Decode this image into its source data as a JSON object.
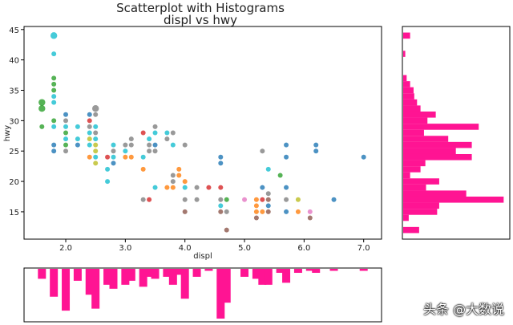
{
  "title_line1": "Scatterplot with Histograms",
  "title_line2": "displ vs hwy",
  "watermark": "头条 @大数说",
  "colors": {
    "hist": "#ff1493",
    "frame": "#000000"
  },
  "chart_data": [
    {
      "type": "scatter",
      "xlabel": "displ",
      "ylabel": "hwy",
      "xlim": [
        1.3,
        7.3
      ],
      "ylim": [
        10.5,
        45.5
      ],
      "xticks": [
        "2.0",
        "3.0",
        "4.0",
        "5.0",
        "6.0",
        "7.0"
      ],
      "yticks": [
        "15",
        "20",
        "25",
        "30",
        "35",
        "40",
        "45"
      ],
      "grid": false,
      "points": [
        {
          "x": 1.8,
          "y": 44,
          "c": "#17becf",
          "n": 2
        },
        {
          "x": 1.8,
          "y": 41,
          "c": "#17becf",
          "n": 1
        },
        {
          "x": 1.8,
          "y": 37,
          "c": "#2ca02c",
          "n": 1
        },
        {
          "x": 1.8,
          "y": 36,
          "c": "#2ca02c",
          "n": 1
        },
        {
          "x": 1.8,
          "y": 35,
          "c": "#2ca02c",
          "n": 1
        },
        {
          "x": 1.8,
          "y": 34,
          "c": "#17becf",
          "n": 1
        },
        {
          "x": 1.8,
          "y": 33,
          "c": "#17becf",
          "n": 1
        },
        {
          "x": 1.6,
          "y": 33,
          "c": "#2ca02c",
          "n": 2
        },
        {
          "x": 1.6,
          "y": 32,
          "c": "#2ca02c",
          "n": 2
        },
        {
          "x": 1.6,
          "y": 29,
          "c": "#2ca02c",
          "n": 1
        },
        {
          "x": 1.8,
          "y": 30,
          "c": "#2ca02c",
          "n": 1
        },
        {
          "x": 1.8,
          "y": 29,
          "c": "#17becf",
          "n": 1
        },
        {
          "x": 1.8,
          "y": 26,
          "c": "#1f77b4",
          "n": 1
        },
        {
          "x": 1.8,
          "y": 25,
          "c": "#1f77b4",
          "n": 1
        },
        {
          "x": 2.0,
          "y": 31,
          "c": "#1f77b4",
          "n": 1
        },
        {
          "x": 2.0,
          "y": 30,
          "c": "#7f7f7f",
          "n": 1
        },
        {
          "x": 2.0,
          "y": 29,
          "c": "#17becf",
          "n": 1
        },
        {
          "x": 2.0,
          "y": 28,
          "c": "#2ca02c",
          "n": 1
        },
        {
          "x": 2.0,
          "y": 27,
          "c": "#17becf",
          "n": 1
        },
        {
          "x": 2.0,
          "y": 26,
          "c": "#2ca02c",
          "n": 1
        },
        {
          "x": 2.0,
          "y": 25,
          "c": "#7f7f7f",
          "n": 1
        },
        {
          "x": 2.2,
          "y": 29,
          "c": "#17becf",
          "n": 1
        },
        {
          "x": 2.2,
          "y": 27,
          "c": "#17becf",
          "n": 1
        },
        {
          "x": 2.2,
          "y": 26,
          "c": "#1f77b4",
          "n": 1
        },
        {
          "x": 2.4,
          "y": 31,
          "c": "#1f77b4",
          "n": 1
        },
        {
          "x": 2.4,
          "y": 30,
          "c": "#d62728",
          "n": 1
        },
        {
          "x": 2.4,
          "y": 29,
          "c": "#7f7f7f",
          "n": 1
        },
        {
          "x": 2.4,
          "y": 28,
          "c": "#17becf",
          "n": 1
        },
        {
          "x": 2.4,
          "y": 27,
          "c": "#bcbd22",
          "n": 1
        },
        {
          "x": 2.4,
          "y": 26,
          "c": "#17becf",
          "n": 1
        },
        {
          "x": 2.4,
          "y": 24,
          "c": "#ff7f0e",
          "n": 1
        },
        {
          "x": 2.5,
          "y": 32,
          "c": "#7f7f7f",
          "n": 2
        },
        {
          "x": 2.5,
          "y": 31,
          "c": "#7f7f7f",
          "n": 1
        },
        {
          "x": 2.5,
          "y": 29,
          "c": "#17becf",
          "n": 1
        },
        {
          "x": 2.5,
          "y": 28,
          "c": "#7f7f7f",
          "n": 1
        },
        {
          "x": 2.5,
          "y": 27,
          "c": "#17becf",
          "n": 1
        },
        {
          "x": 2.5,
          "y": 26,
          "c": "#bcbd22",
          "n": 1
        },
        {
          "x": 2.5,
          "y": 25,
          "c": "#bcbd22",
          "n": 1
        },
        {
          "x": 2.5,
          "y": 24,
          "c": "#17becf",
          "n": 1
        },
        {
          "x": 2.5,
          "y": 23,
          "c": "#bcbd22",
          "n": 1
        },
        {
          "x": 2.7,
          "y": 24,
          "c": "#d62728",
          "n": 1
        },
        {
          "x": 2.7,
          "y": 22,
          "c": "#17becf",
          "n": 1
        },
        {
          "x": 2.7,
          "y": 20,
          "c": "#17becf",
          "n": 1
        },
        {
          "x": 2.8,
          "y": 26,
          "c": "#17becf",
          "n": 1
        },
        {
          "x": 2.8,
          "y": 25,
          "c": "#7f7f7f",
          "n": 1
        },
        {
          "x": 2.8,
          "y": 24,
          "c": "#17becf",
          "n": 1
        },
        {
          "x": 2.8,
          "y": 23,
          "c": "#1f77b4",
          "n": 1
        },
        {
          "x": 3.0,
          "y": 26,
          "c": "#7f7f7f",
          "n": 1
        },
        {
          "x": 3.0,
          "y": 25,
          "c": "#17becf",
          "n": 1
        },
        {
          "x": 3.0,
          "y": 24,
          "c": "#ff7f0e",
          "n": 1
        },
        {
          "x": 3.1,
          "y": 26,
          "c": "#7f7f7f",
          "n": 1
        },
        {
          "x": 3.1,
          "y": 27,
          "c": "#7f7f7f",
          "n": 1
        },
        {
          "x": 3.1,
          "y": 24,
          "c": "#ff7f0e",
          "n": 1
        },
        {
          "x": 3.3,
          "y": 28,
          "c": "#d62728",
          "n": 1
        },
        {
          "x": 3.3,
          "y": 24,
          "c": "#17becf",
          "n": 1
        },
        {
          "x": 3.3,
          "y": 22,
          "c": "#ff7f0e",
          "n": 1
        },
        {
          "x": 3.3,
          "y": 17,
          "c": "#7f7f7f",
          "n": 1
        },
        {
          "x": 3.4,
          "y": 27,
          "c": "#17becf",
          "n": 1
        },
        {
          "x": 3.4,
          "y": 26,
          "c": "#7f7f7f",
          "n": 1
        },
        {
          "x": 3.4,
          "y": 25,
          "c": "#7f7f7f",
          "n": 1
        },
        {
          "x": 3.4,
          "y": 17,
          "c": "#d62728",
          "n": 1
        },
        {
          "x": 3.5,
          "y": 29,
          "c": "#7f7f7f",
          "n": 1
        },
        {
          "x": 3.5,
          "y": 28,
          "c": "#17becf",
          "n": 1
        },
        {
          "x": 3.5,
          "y": 26,
          "c": "#1f77b4",
          "n": 1
        },
        {
          "x": 3.5,
          "y": 25,
          "c": "#7f7f7f",
          "n": 1
        },
        {
          "x": 3.5,
          "y": 19,
          "c": "#17becf",
          "n": 1
        },
        {
          "x": 3.7,
          "y": 28,
          "c": "#17becf",
          "n": 1
        },
        {
          "x": 3.7,
          "y": 27,
          "c": "#7f7f7f",
          "n": 1
        },
        {
          "x": 3.7,
          "y": 19,
          "c": "#ff7f0e",
          "n": 1
        },
        {
          "x": 3.8,
          "y": 28,
          "c": "#7f7f7f",
          "n": 1
        },
        {
          "x": 3.8,
          "y": 26,
          "c": "#17becf",
          "n": 1
        },
        {
          "x": 3.8,
          "y": 21,
          "c": "#7f7f7f",
          "n": 1
        },
        {
          "x": 3.8,
          "y": 20,
          "c": "#7f7f7f",
          "n": 1
        },
        {
          "x": 3.8,
          "y": 19,
          "c": "#ff7f0e",
          "n": 1
        },
        {
          "x": 3.9,
          "y": 22,
          "c": "#ff7f0e",
          "n": 1
        },
        {
          "x": 3.9,
          "y": 21,
          "c": "#ff7f0e",
          "n": 1
        },
        {
          "x": 4.0,
          "y": 26,
          "c": "#7f7f7f",
          "n": 1
        },
        {
          "x": 4.0,
          "y": 20,
          "c": "#ff7f0e",
          "n": 1
        },
        {
          "x": 4.0,
          "y": 19,
          "c": "#17becf",
          "n": 1
        },
        {
          "x": 4.0,
          "y": 17,
          "c": "#7f7f7f",
          "n": 1
        },
        {
          "x": 4.0,
          "y": 15,
          "c": "#8c564b",
          "n": 1
        },
        {
          "x": 4.2,
          "y": 19,
          "c": "#7f7f7f",
          "n": 1
        },
        {
          "x": 4.2,
          "y": 17,
          "c": "#7f7f7f",
          "n": 1
        },
        {
          "x": 4.4,
          "y": 19,
          "c": "#d62728",
          "n": 1
        },
        {
          "x": 4.6,
          "y": 24,
          "c": "#1f77b4",
          "n": 1
        },
        {
          "x": 4.6,
          "y": 23,
          "c": "#1f77b4",
          "n": 1
        },
        {
          "x": 4.6,
          "y": 19,
          "c": "#d62728",
          "n": 1
        },
        {
          "x": 4.6,
          "y": 17,
          "c": "#7f7f7f",
          "n": 1
        },
        {
          "x": 4.6,
          "y": 16,
          "c": "#17becf",
          "n": 1
        },
        {
          "x": 4.6,
          "y": 15,
          "c": "#8c564b",
          "n": 1
        },
        {
          "x": 4.7,
          "y": 17,
          "c": "#2ca02c",
          "n": 1
        },
        {
          "x": 4.7,
          "y": 15,
          "c": "#7f7f7f",
          "n": 1
        },
        {
          "x": 4.7,
          "y": 12,
          "c": "#8c564b",
          "n": 1
        },
        {
          "x": 5.0,
          "y": 17,
          "c": "#e377c2",
          "n": 1
        },
        {
          "x": 5.2,
          "y": 17,
          "c": "#ff7f0e",
          "n": 1
        },
        {
          "x": 5.2,
          "y": 16,
          "c": "#ff7f0e",
          "n": 1
        },
        {
          "x": 5.2,
          "y": 15,
          "c": "#ff7f0e",
          "n": 1
        },
        {
          "x": 5.2,
          "y": 14,
          "c": "#8c564b",
          "n": 1
        },
        {
          "x": 5.3,
          "y": 25,
          "c": "#7f7f7f",
          "n": 1
        },
        {
          "x": 5.3,
          "y": 19,
          "c": "#1f77b4",
          "n": 1
        },
        {
          "x": 5.3,
          "y": 17,
          "c": "#d62728",
          "n": 1
        },
        {
          "x": 5.3,
          "y": 15,
          "c": "#ff7f0e",
          "n": 1
        },
        {
          "x": 5.4,
          "y": 22,
          "c": "#17becf",
          "n": 1
        },
        {
          "x": 5.4,
          "y": 18,
          "c": "#7f7f7f",
          "n": 1
        },
        {
          "x": 5.4,
          "y": 17,
          "c": "#8c564b",
          "n": 1
        },
        {
          "x": 5.4,
          "y": 16,
          "c": "#1f77b4",
          "n": 1
        },
        {
          "x": 5.4,
          "y": 15,
          "c": "#8c564b",
          "n": 1
        },
        {
          "x": 5.6,
          "y": 21,
          "c": "#2ca02c",
          "n": 1
        },
        {
          "x": 5.7,
          "y": 26,
          "c": "#1f77b4",
          "n": 1
        },
        {
          "x": 5.7,
          "y": 24,
          "c": "#1f77b4",
          "n": 1
        },
        {
          "x": 5.7,
          "y": 19,
          "c": "#1f77b4",
          "n": 1
        },
        {
          "x": 5.7,
          "y": 17,
          "c": "#7f7f7f",
          "n": 1
        },
        {
          "x": 5.7,
          "y": 15,
          "c": "#1f77b4",
          "n": 1
        },
        {
          "x": 5.9,
          "y": 17,
          "c": "#bcbd22",
          "n": 1
        },
        {
          "x": 5.9,
          "y": 15,
          "c": "#ff7f0e",
          "n": 1
        },
        {
          "x": 6.1,
          "y": 15,
          "c": "#e377c2",
          "n": 1
        },
        {
          "x": 6.1,
          "y": 14,
          "c": "#8c564b",
          "n": 1
        },
        {
          "x": 6.2,
          "y": 26,
          "c": "#1f77b4",
          "n": 1
        },
        {
          "x": 6.2,
          "y": 25,
          "c": "#1f77b4",
          "n": 1
        },
        {
          "x": 6.5,
          "y": 17,
          "c": "#1f77b4",
          "n": 1
        },
        {
          "x": 7.0,
          "y": 24,
          "c": "#1f77b4",
          "n": 1
        }
      ]
    },
    {
      "type": "bar",
      "orientation": "horizontal",
      "note": "marginal histogram of hwy (axis inverted)",
      "ylim": [
        10.5,
        45.5
      ],
      "bins": [
        {
          "y": 44,
          "count": 1
        },
        {
          "y": 41,
          "count": 0.3
        },
        {
          "y": 37,
          "count": 0.5
        },
        {
          "y": 36,
          "count": 1
        },
        {
          "y": 35,
          "count": 1.5
        },
        {
          "y": 34,
          "count": 1.6
        },
        {
          "y": 33,
          "count": 2
        },
        {
          "y": 32,
          "count": 2.5
        },
        {
          "y": 31,
          "count": 4.7
        },
        {
          "y": 30,
          "count": 3.5
        },
        {
          "y": 29,
          "count": 10.9
        },
        {
          "y": 28,
          "count": 3
        },
        {
          "y": 27,
          "count": 6.5
        },
        {
          "y": 26,
          "count": 9.9
        },
        {
          "y": 25,
          "count": 7.6
        },
        {
          "y": 24,
          "count": 9.9
        },
        {
          "y": 23,
          "count": 3.2
        },
        {
          "y": 22,
          "count": 2.5
        },
        {
          "y": 21,
          "count": 1
        },
        {
          "y": 20,
          "count": 5.2
        },
        {
          "y": 19,
          "count": 3.3
        },
        {
          "y": 18,
          "count": 9.1
        },
        {
          "y": 17,
          "count": 14.5
        },
        {
          "y": 16,
          "count": 5.2
        },
        {
          "y": 15,
          "count": 4.9
        },
        {
          "y": 14,
          "count": 0.8
        },
        {
          "y": 12,
          "count": 2.3
        }
      ]
    },
    {
      "type": "bar",
      "orientation": "vertical",
      "note": "marginal histogram of displ (axis inverted)",
      "xlim": [
        1.3,
        7.3
      ],
      "bins": [
        {
          "x": 1.6,
          "count": 5
        },
        {
          "x": 1.8,
          "count": 14
        },
        {
          "x": 2.0,
          "count": 21
        },
        {
          "x": 2.2,
          "count": 6
        },
        {
          "x": 2.4,
          "count": 13
        },
        {
          "x": 2.5,
          "count": 20
        },
        {
          "x": 2.7,
          "count": 8
        },
        {
          "x": 2.8,
          "count": 10
        },
        {
          "x": 3.0,
          "count": 8
        },
        {
          "x": 3.1,
          "count": 6
        },
        {
          "x": 3.3,
          "count": 9
        },
        {
          "x": 3.4,
          "count": 4
        },
        {
          "x": 3.5,
          "count": 5
        },
        {
          "x": 3.7,
          "count": 4
        },
        {
          "x": 3.8,
          "count": 8
        },
        {
          "x": 3.9,
          "count": 3
        },
        {
          "x": 4.0,
          "count": 15
        },
        {
          "x": 4.2,
          "count": 4
        },
        {
          "x": 4.4,
          "count": 1
        },
        {
          "x": 4.6,
          "count": 25
        },
        {
          "x": 4.7,
          "count": 17
        },
        {
          "x": 5.0,
          "count": 4
        },
        {
          "x": 5.2,
          "count": 5
        },
        {
          "x": 5.3,
          "count": 8
        },
        {
          "x": 5.4,
          "count": 8
        },
        {
          "x": 5.6,
          "count": 2
        },
        {
          "x": 5.7,
          "count": 7
        },
        {
          "x": 5.9,
          "count": 2
        },
        {
          "x": 6.1,
          "count": 1
        },
        {
          "x": 6.2,
          "count": 2
        },
        {
          "x": 6.5,
          "count": 1
        },
        {
          "x": 7.0,
          "count": 1
        }
      ]
    }
  ]
}
